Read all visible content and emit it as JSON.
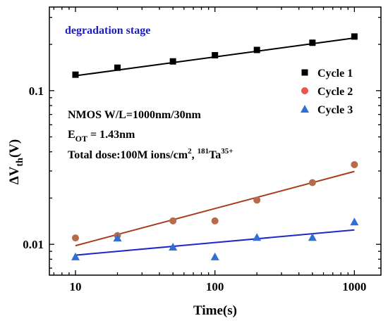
{
  "chart_data": {
    "type": "scatter",
    "xlabel": "Time(s)",
    "ylabel": {
      "main": "ΔV",
      "sub": "th",
      "tail": "(V)"
    },
    "xscale": "log",
    "yscale": "log",
    "xlim": [
      6.5,
      1550
    ],
    "ylim": [
      0.0063,
      0.35
    ],
    "xticks": [
      10,
      100,
      1000
    ],
    "xtick_labels": [
      "10",
      "100",
      "1000"
    ],
    "yticks": [
      0.01,
      0.1
    ],
    "ytick_labels": [
      "0.01",
      "0.1"
    ],
    "grid": false,
    "legend_position": "right",
    "series": [
      {
        "name": "Cycle 1",
        "marker": "square",
        "color": "#000000",
        "fit_color": "#000000",
        "x": [
          10,
          20,
          50,
          100,
          200,
          500,
          1000
        ],
        "y": [
          0.127,
          0.141,
          0.155,
          0.17,
          0.184,
          0.205,
          0.225
        ],
        "fit": [
          [
            10,
            0.125
          ],
          [
            1000,
            0.22
          ]
        ]
      },
      {
        "name": "Cycle 2",
        "marker": "circle",
        "color": "#e8544f",
        "point_color": "#b86a4a",
        "fit_color": "#a83a1a",
        "x": [
          10,
          20,
          50,
          100,
          200,
          500,
          1000
        ],
        "y": [
          0.011,
          0.0114,
          0.0142,
          0.0142,
          0.0194,
          0.0252,
          0.033
        ],
        "fit": [
          [
            10,
            0.0098
          ],
          [
            1000,
            0.0298
          ]
        ]
      },
      {
        "name": "Cycle 3",
        "marker": "triangle",
        "color": "#2f6fd6",
        "fit_color": "#1f28c8",
        "x": [
          10,
          20,
          50,
          100,
          200,
          500,
          1000
        ],
        "y": [
          0.0083,
          0.011,
          0.0096,
          0.0083,
          0.0111,
          0.0111,
          0.014
        ],
        "fit": [
          [
            10,
            0.0085
          ],
          [
            1000,
            0.0124
          ]
        ]
      }
    ],
    "annotations": {
      "stage": "degradation stage",
      "stage_color": "#1a1acc",
      "device": "NMOS   W/L=1000nm/30nm",
      "eot_main": "E",
      "eot_sub": "OT",
      "eot_tail": " = 1.43nm",
      "dose_prefix": "Total dose:100M ions/cm",
      "dose_exp": "2",
      "dose_sep": ", ",
      "dose_mass": "181",
      "dose_elem": "Ta",
      "dose_charge": "35+"
    }
  }
}
